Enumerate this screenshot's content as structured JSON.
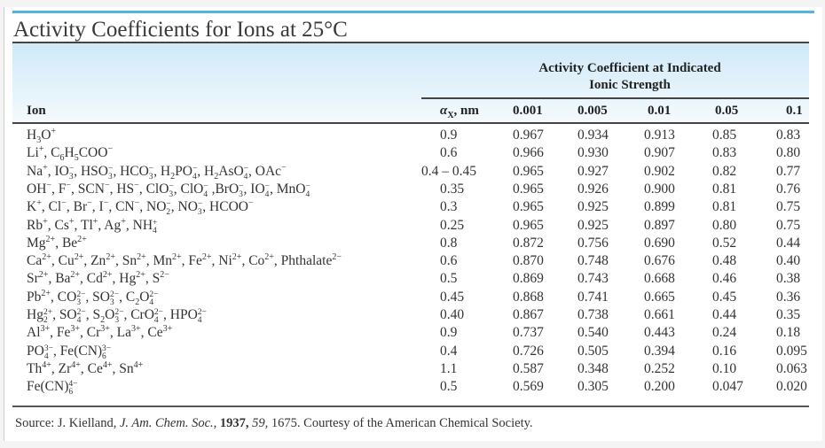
{
  "title": "Activity Coefficients for Ions at 25°C",
  "header": {
    "ion_label": "Ion",
    "ax_label_symbol": "α",
    "ax_label_sub": "X",
    "ax_label_unit": ", nm",
    "group_line1": "Activity Coefficient at Indicated",
    "group_line2": "Ionic Strength",
    "ionic_strengths": [
      "0.001",
      "0.005",
      "0.01",
      "0.05",
      "0.1"
    ]
  },
  "colors": {
    "accent_rule": "#4db5de",
    "header_band_top": "#cfe9f8",
    "header_band_bottom": "#f4fafd"
  },
  "rows": [
    {
      "ion": [
        [
          "H"
        ],
        [
          "3",
          "sub"
        ],
        [
          "O"
        ],
        [
          "+",
          "sup"
        ]
      ],
      "ax": "0.9",
      "values": [
        "0.967",
        "0.934",
        "0.913",
        "0.85",
        "0.83"
      ]
    },
    {
      "ion": [
        [
          "Li"
        ],
        [
          "+",
          "sup"
        ],
        [
          ", C"
        ],
        [
          "6",
          "sub"
        ],
        [
          "H"
        ],
        [
          "5",
          "sub"
        ],
        [
          "COO"
        ],
        [
          "−",
          "sup"
        ]
      ],
      "ax": "0.6",
      "values": [
        "0.966",
        "0.930",
        "0.907",
        "0.83",
        "0.80"
      ]
    },
    {
      "ion": [
        [
          "Na"
        ],
        [
          "+",
          "sup"
        ],
        [
          ", IO"
        ],
        [
          "3",
          "−"
        ],
        [
          ", HSO"
        ],
        [
          "3",
          "−"
        ],
        [
          ", HCO"
        ],
        [
          "3",
          "−"
        ],
        [
          ", H"
        ],
        [
          "2",
          "sub"
        ],
        [
          "PO"
        ],
        [
          "4",
          "−"
        ],
        [
          ", H"
        ],
        [
          "2",
          "sub"
        ],
        [
          "AsO"
        ],
        [
          "4",
          "−"
        ],
        [
          ", OAc"
        ],
        [
          "−",
          "sup"
        ]
      ],
      "ax": "0.4 – 0.45",
      "values": [
        "0.965",
        "0.927",
        "0.902",
        "0.82",
        "0.77"
      ]
    },
    {
      "ion": [
        [
          "OH"
        ],
        [
          "−",
          "sup"
        ],
        [
          ", F"
        ],
        [
          "−",
          "sup"
        ],
        [
          ", SCN"
        ],
        [
          "−",
          "sup"
        ],
        [
          ", HS"
        ],
        [
          "−",
          "sup"
        ],
        [
          ", ClO"
        ],
        [
          "3",
          "−"
        ],
        [
          ", ClO"
        ],
        [
          "4",
          "−"
        ],
        [
          " ,BrO"
        ],
        [
          "3",
          "−"
        ],
        [
          ", IO"
        ],
        [
          "4",
          "−"
        ],
        [
          ", MnO"
        ],
        [
          "4",
          "−"
        ]
      ],
      "ax": "0.35",
      "values": [
        "0.965",
        "0.926",
        "0.900",
        "0.81",
        "0.76"
      ]
    },
    {
      "ion": [
        [
          "K"
        ],
        [
          "+",
          "sup"
        ],
        [
          ", Cl"
        ],
        [
          "−",
          "sup"
        ],
        [
          ", Br"
        ],
        [
          "−",
          "sup"
        ],
        [
          ", I"
        ],
        [
          "−",
          "sup"
        ],
        [
          ", CN"
        ],
        [
          "−",
          "sup"
        ],
        [
          ", NO"
        ],
        [
          "2",
          "−"
        ],
        [
          ", NO"
        ],
        [
          "3",
          "−"
        ],
        [
          ", HCOO"
        ],
        [
          "−",
          "sup"
        ]
      ],
      "ax": "0.3",
      "values": [
        "0.965",
        "0.925",
        "0.899",
        "0.81",
        "0.75"
      ]
    },
    {
      "ion": [
        [
          "Rb"
        ],
        [
          "+",
          "sup"
        ],
        [
          ", Cs"
        ],
        [
          "+",
          "sup"
        ],
        [
          ", Tl"
        ],
        [
          "+",
          "sup"
        ],
        [
          ", Ag"
        ],
        [
          "+",
          "sup"
        ],
        [
          ", NH"
        ],
        [
          "4",
          "+"
        ]
      ],
      "ax": "0.25",
      "values": [
        "0.965",
        "0.925",
        "0.897",
        "0.80",
        "0.75"
      ]
    },
    {
      "ion": [
        [
          "Mg"
        ],
        [
          "2+",
          "sup"
        ],
        [
          ", Be"
        ],
        [
          "2+",
          "sup"
        ]
      ],
      "ax": "0.8",
      "values": [
        "0.872",
        "0.756",
        "0.690",
        "0.52",
        "0.44"
      ]
    },
    {
      "ion": [
        [
          "Ca"
        ],
        [
          "2+",
          "sup"
        ],
        [
          ", Cu"
        ],
        [
          "2+",
          "sup"
        ],
        [
          ", Zn"
        ],
        [
          "2+",
          "sup"
        ],
        [
          ", Sn"
        ],
        [
          "2+",
          "sup"
        ],
        [
          ", Mn"
        ],
        [
          "2+",
          "sup"
        ],
        [
          ", Fe"
        ],
        [
          "2+",
          "sup"
        ],
        [
          ", Ni"
        ],
        [
          "2+",
          "sup"
        ],
        [
          ", Co"
        ],
        [
          "2+",
          "sup"
        ],
        [
          ", Phthalate"
        ],
        [
          "2−",
          "sup"
        ]
      ],
      "ax": "0.6",
      "values": [
        "0.870",
        "0.748",
        "0.676",
        "0.48",
        "0.40"
      ]
    },
    {
      "ion": [
        [
          "Sr"
        ],
        [
          "2+",
          "sup"
        ],
        [
          ", Ba"
        ],
        [
          "2+",
          "sup"
        ],
        [
          ", Cd"
        ],
        [
          "2+",
          "sup"
        ],
        [
          ", Hg"
        ],
        [
          "2+",
          "sup"
        ],
        [
          ", S"
        ],
        [
          "2−",
          "sup"
        ]
      ],
      "ax": "0.5",
      "values": [
        "0.869",
        "0.743",
        "0.668",
        "0.46",
        "0.38"
      ]
    },
    {
      "ion": [
        [
          "Pb"
        ],
        [
          "2+",
          "sup"
        ],
        [
          ", CO"
        ],
        [
          "3",
          "2−"
        ],
        [
          ", SO"
        ],
        [
          "3",
          "2−"
        ],
        [
          ", C"
        ],
        [
          "2",
          "sub"
        ],
        [
          "O"
        ],
        [
          "4",
          "2−"
        ]
      ],
      "ax": "0.45",
      "values": [
        "0.868",
        "0.741",
        "0.665",
        "0.45",
        "0.36"
      ]
    },
    {
      "ion": [
        [
          "Hg"
        ],
        [
          "2",
          "2+"
        ],
        [
          ", SO"
        ],
        [
          "4",
          "2−"
        ],
        [
          ", S"
        ],
        [
          "2",
          "sub"
        ],
        [
          "O"
        ],
        [
          "3",
          "2−"
        ],
        [
          ", CrO"
        ],
        [
          "4",
          "2−"
        ],
        [
          ", HPO"
        ],
        [
          "4",
          "2−"
        ]
      ],
      "ax": "0.40",
      "values": [
        "0.867",
        "0.738",
        "0.661",
        "0.44",
        "0.35"
      ]
    },
    {
      "ion": [
        [
          "Al"
        ],
        [
          "3+",
          "sup"
        ],
        [
          ", Fe"
        ],
        [
          "3+",
          "sup"
        ],
        [
          ", Cr"
        ],
        [
          "3+",
          "sup"
        ],
        [
          ", La"
        ],
        [
          "3+",
          "sup"
        ],
        [
          ", Ce"
        ],
        [
          "3+",
          "sup"
        ]
      ],
      "ax": "0.9",
      "values": [
        "0.737",
        "0.540",
        "0.443",
        "0.24",
        "0.18"
      ]
    },
    {
      "ion": [
        [
          "PO"
        ],
        [
          "4",
          "3−"
        ],
        [
          ", Fe(CN)"
        ],
        [
          "6",
          "3−"
        ]
      ],
      "ax": "0.4",
      "values": [
        "0.726",
        "0.505",
        "0.394",
        "0.16",
        "0.095"
      ]
    },
    {
      "ion": [
        [
          "Th"
        ],
        [
          "4+",
          "sup"
        ],
        [
          ", Zr"
        ],
        [
          "4+",
          "sup"
        ],
        [
          ", Ce"
        ],
        [
          "4+",
          "sup"
        ],
        [
          ", Sn"
        ],
        [
          "4+",
          "sup"
        ]
      ],
      "ax": "1.1",
      "values": [
        "0.587",
        "0.348",
        "0.252",
        "0.10",
        "0.063"
      ]
    },
    {
      "ion": [
        [
          "Fe(CN)"
        ],
        [
          "6",
          "4−"
        ]
      ],
      "ax": "0.5",
      "values": [
        "0.569",
        "0.305",
        "0.200",
        "0.047",
        "0.020"
      ]
    }
  ],
  "source": {
    "prefix": "Source: J. Kielland, ",
    "journal": "J. Am. Chem. Soc.",
    "sep1": ", ",
    "year": "1937,",
    "sep2": " ",
    "volume": "59,",
    "rest": " 1675. Courtesy of the American Chemical Society."
  }
}
